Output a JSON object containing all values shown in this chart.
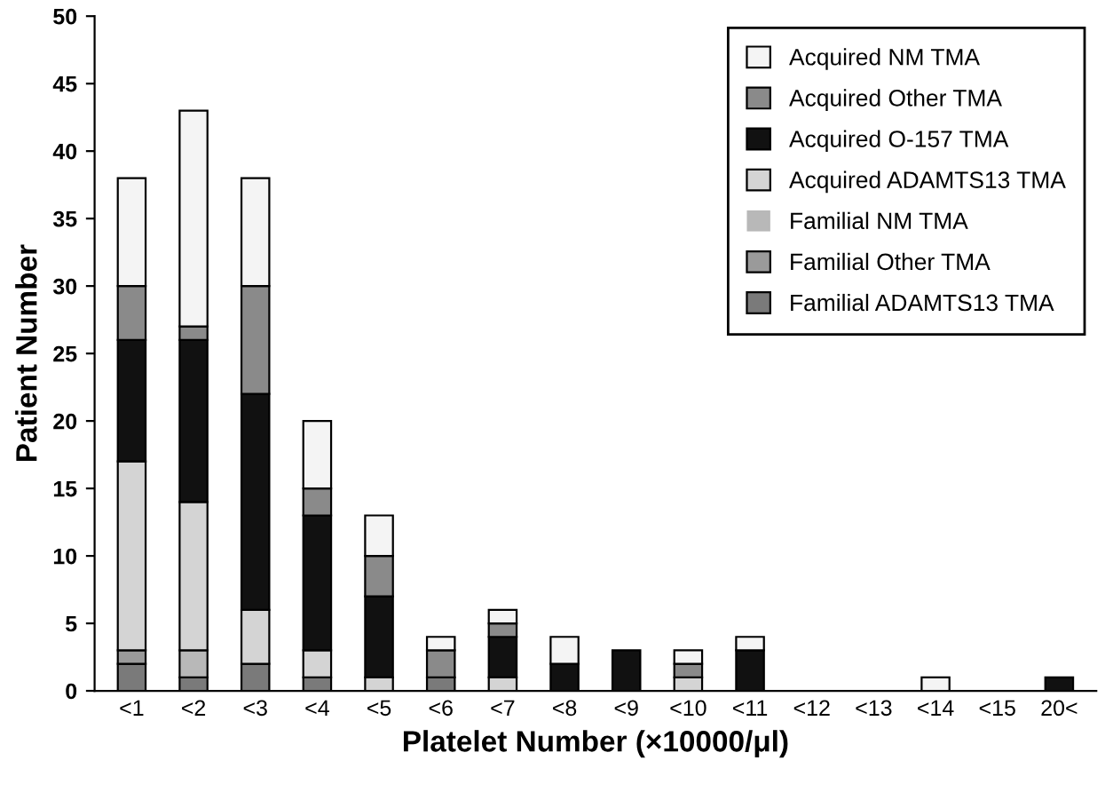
{
  "chart_data": {
    "type": "bar",
    "stacked": true,
    "xlabel": "Platelet Number (×10000/μl)",
    "ylabel": "Patient Number",
    "categories": [
      "<1",
      "<2",
      "<3",
      "<4",
      "<5",
      "<6",
      "<7",
      "<8",
      "<9",
      "<10",
      "<11",
      "<12",
      "<13",
      "<14",
      "<15",
      "20<"
    ],
    "series": [
      {
        "name": "Familial ADAMTS13 TMA",
        "color": "#7a7a7a",
        "values": [
          2,
          1,
          2,
          1,
          0,
          1,
          0,
          0,
          0,
          0,
          0,
          0,
          0,
          0,
          0,
          0
        ]
      },
      {
        "name": "Familial Other TMA",
        "color": "#9a9a9a",
        "values": [
          1,
          0,
          0,
          0,
          0,
          0,
          0,
          0,
          0,
          0,
          0,
          0,
          0,
          0,
          0,
          0
        ]
      },
      {
        "name": "Familial NM TMA",
        "color": "#b8b8b8",
        "values": [
          0,
          2,
          0,
          0,
          0,
          0,
          0,
          0,
          0,
          0,
          0,
          0,
          0,
          0,
          0,
          0
        ]
      },
      {
        "name": "Acquired ADAMTS13 TMA",
        "color": "#d4d4d4",
        "values": [
          14,
          11,
          4,
          2,
          1,
          0,
          1,
          0,
          0,
          1,
          0,
          0,
          0,
          0,
          0,
          0
        ]
      },
      {
        "name": "Acquired O-157 TMA",
        "color": "#111111",
        "values": [
          9,
          12,
          16,
          10,
          6,
          0,
          3,
          2,
          3,
          0,
          3,
          0,
          0,
          0,
          0,
          1
        ]
      },
      {
        "name": "Acquired Other TMA",
        "color": "#8a8a8a",
        "values": [
          4,
          1,
          8,
          2,
          3,
          2,
          1,
          0,
          0,
          1,
          0,
          0,
          0,
          0,
          0,
          0
        ]
      },
      {
        "name": "Acquired NM TMA",
        "color": "#f4f4f4",
        "values": [
          8,
          16,
          8,
          5,
          3,
          1,
          1,
          2,
          0,
          1,
          1,
          0,
          0,
          1,
          0,
          0
        ]
      }
    ],
    "ylim": [
      0,
      50
    ],
    "yticks": [
      0,
      5,
      10,
      15,
      20,
      25,
      30,
      35,
      40,
      45,
      50
    ],
    "legend": "top right",
    "grid": false
  }
}
